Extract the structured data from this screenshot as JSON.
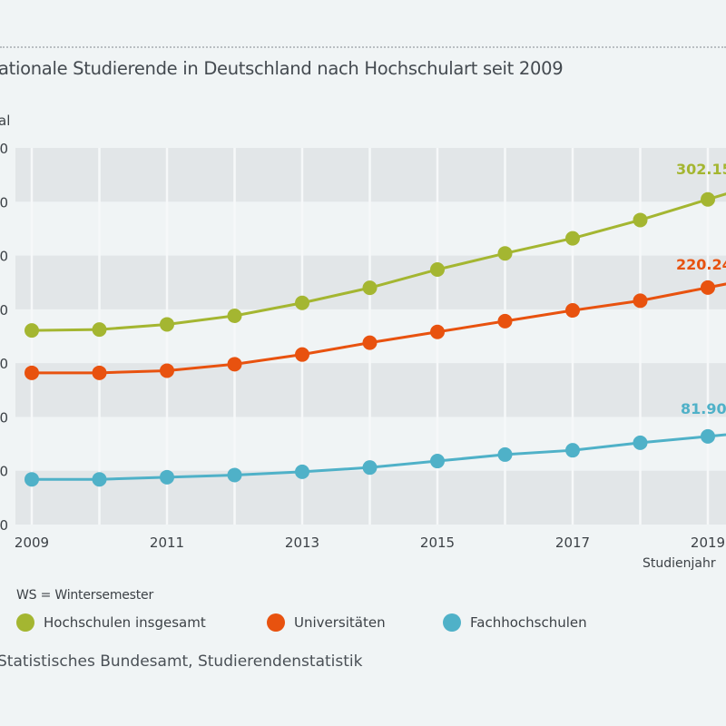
{
  "header": {
    "title": "ationale Studierende in Deutschland nach Hochschulart seit 2009"
  },
  "chart_data": {
    "type": "line",
    "title": "ationale Studierende in Deutschland nach Hochschulart seit 2009",
    "ylabel": "al",
    "xlabel": "Studienjahr",
    "ylim": [
      0,
      350000
    ],
    "yticks": [
      0,
      50000,
      100000,
      150000,
      200000,
      250000,
      300000,
      350000
    ],
    "ytick_labels": [
      "0",
      "0",
      "0",
      "0",
      "0",
      "0",
      "0",
      "0"
    ],
    "x": [
      2009,
      2010,
      2011,
      2012,
      2013,
      2014,
      2015,
      2016,
      2017,
      2018,
      2019
    ],
    "xtick_labels": [
      "2009",
      "2011",
      "2013",
      "2015",
      "2017",
      "2019"
    ],
    "grid": "alternating horizontal bands, vertical lines per year",
    "legend_position": "bottom",
    "series": [
      {
        "name": "Hochschulen insgesamt",
        "color": "#a4b631",
        "values": [
          180400,
          181200,
          186000,
          194000,
          206000,
          220000,
          237000,
          252000,
          266000,
          283000,
          302150
        ],
        "end_label": "302.15"
      },
      {
        "name": "Universitäten",
        "color": "#e8520f",
        "values": [
          141000,
          141000,
          143000,
          149000,
          158000,
          169000,
          179000,
          189000,
          199000,
          208000,
          220240
        ],
        "end_label": "220.24"
      },
      {
        "name": "Fachhochschulen",
        "color": "#4fb1c8",
        "values": [
          42000,
          42000,
          44000,
          46000,
          49000,
          53000,
          59000,
          65000,
          69000,
          76000,
          81900
        ],
        "end_label": "81.90"
      }
    ]
  },
  "legend": {
    "note": "WS = Wintersemester"
  },
  "footer": {
    "source": "Statistisches Bundesamt, Studierendenstatistik"
  }
}
